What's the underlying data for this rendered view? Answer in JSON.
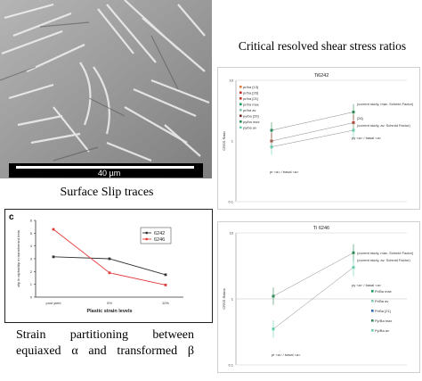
{
  "micrograph": {
    "scale_label": "40 µm"
  },
  "captions": {
    "surface_slip": "Surface Slip traces",
    "crss_title": "Critical resolved shear stress ratios",
    "strain_line1": "Strain partitioning between",
    "strain_line2": "equiaxed α and transformed β"
  },
  "panel_c": {
    "label": "c"
  },
  "chart_data": [
    {
      "type": "line",
      "title": "",
      "xlabel": "Plastic strain levels",
      "ylabel": "slip in alpha/slip in transformed beta",
      "categories": [
        "post yield",
        "5%",
        "10%"
      ],
      "ylim": [
        0,
        6
      ],
      "yticks": [
        0,
        1,
        2,
        3,
        4,
        5,
        6
      ],
      "series": [
        {
          "name": "6242",
          "color": "#333333",
          "values": [
            3.15,
            3.0,
            1.75
          ]
        },
        {
          "name": "6246",
          "color": "#e23b3b",
          "values": [
            5.3,
            1.9,
            0.95
          ]
        }
      ],
      "legend": "top-right"
    },
    {
      "type": "scatter",
      "title": "Ti6242",
      "ylabel": "CRSS Ratio",
      "yscale": "log",
      "ylim": [
        0.1,
        10
      ],
      "yticks": [
        "0.1",
        "1",
        "10"
      ],
      "categories": [
        "pr <a> / basal <a>",
        "py <a> / basal <a>"
      ],
      "annotations": [
        "(current study, max. Schmid Factor)",
        "[26]",
        "(current study, av. Schmid Factor)"
      ],
      "legend_entries": [
        {
          "label": "pr/ba [13]",
          "color": "#e07b39"
        },
        {
          "label": "pr/ba [26]",
          "color": "#b5332a"
        },
        {
          "label": "pr/ba [21]",
          "color": "#c0392b"
        },
        {
          "label": "pr/ba max",
          "color": "#1a9a5a"
        },
        {
          "label": "pr/ba av",
          "color": "#7fc6b0"
        },
        {
          "label": "py/ba [26]",
          "color": "#6e2a2a"
        },
        {
          "label": "py/ba max",
          "color": "#2e8b57"
        },
        {
          "label": "py/ba av",
          "color": "#66cdaa"
        }
      ],
      "series": [
        {
          "color": "#2e8b57",
          "values": [
            1.5,
            3.0
          ]
        },
        {
          "color": "#b5332a",
          "values": [
            1.0,
            2.0
          ]
        },
        {
          "color": "#66cdaa",
          "values": [
            0.8,
            1.5
          ]
        }
      ]
    },
    {
      "type": "scatter",
      "title": "Ti 6246",
      "ylabel": "CRSS Ratios",
      "yscale": "log",
      "ylim": [
        0.1,
        10
      ],
      "yticks": [
        "0.1",
        "1",
        "10"
      ],
      "categories": [
        "pr <a> / basal <a>",
        "py <a> / basal <a>"
      ],
      "annotations": [
        "(current study, max. Schmid Factor)",
        "(current study, av. Schmid Factor)"
      ],
      "legend_entries": [
        {
          "label": "Pr/Ba max",
          "color": "#1a9a5a"
        },
        {
          "label": "Pr/Ba av",
          "color": "#7fc6b0"
        },
        {
          "label": "Pr/Ba [21]",
          "color": "#2a6eb5"
        },
        {
          "label": "Py/Ba max",
          "color": "#2e8b57"
        },
        {
          "label": "Py/Ba av",
          "color": "#66cdaa"
        }
      ],
      "series": [
        {
          "color": "#2e8b57",
          "values": [
            1.1,
            5.0
          ]
        },
        {
          "color": "#66cdaa",
          "values": [
            0.35,
            3.0
          ]
        }
      ],
      "reference_line": 1
    }
  ]
}
